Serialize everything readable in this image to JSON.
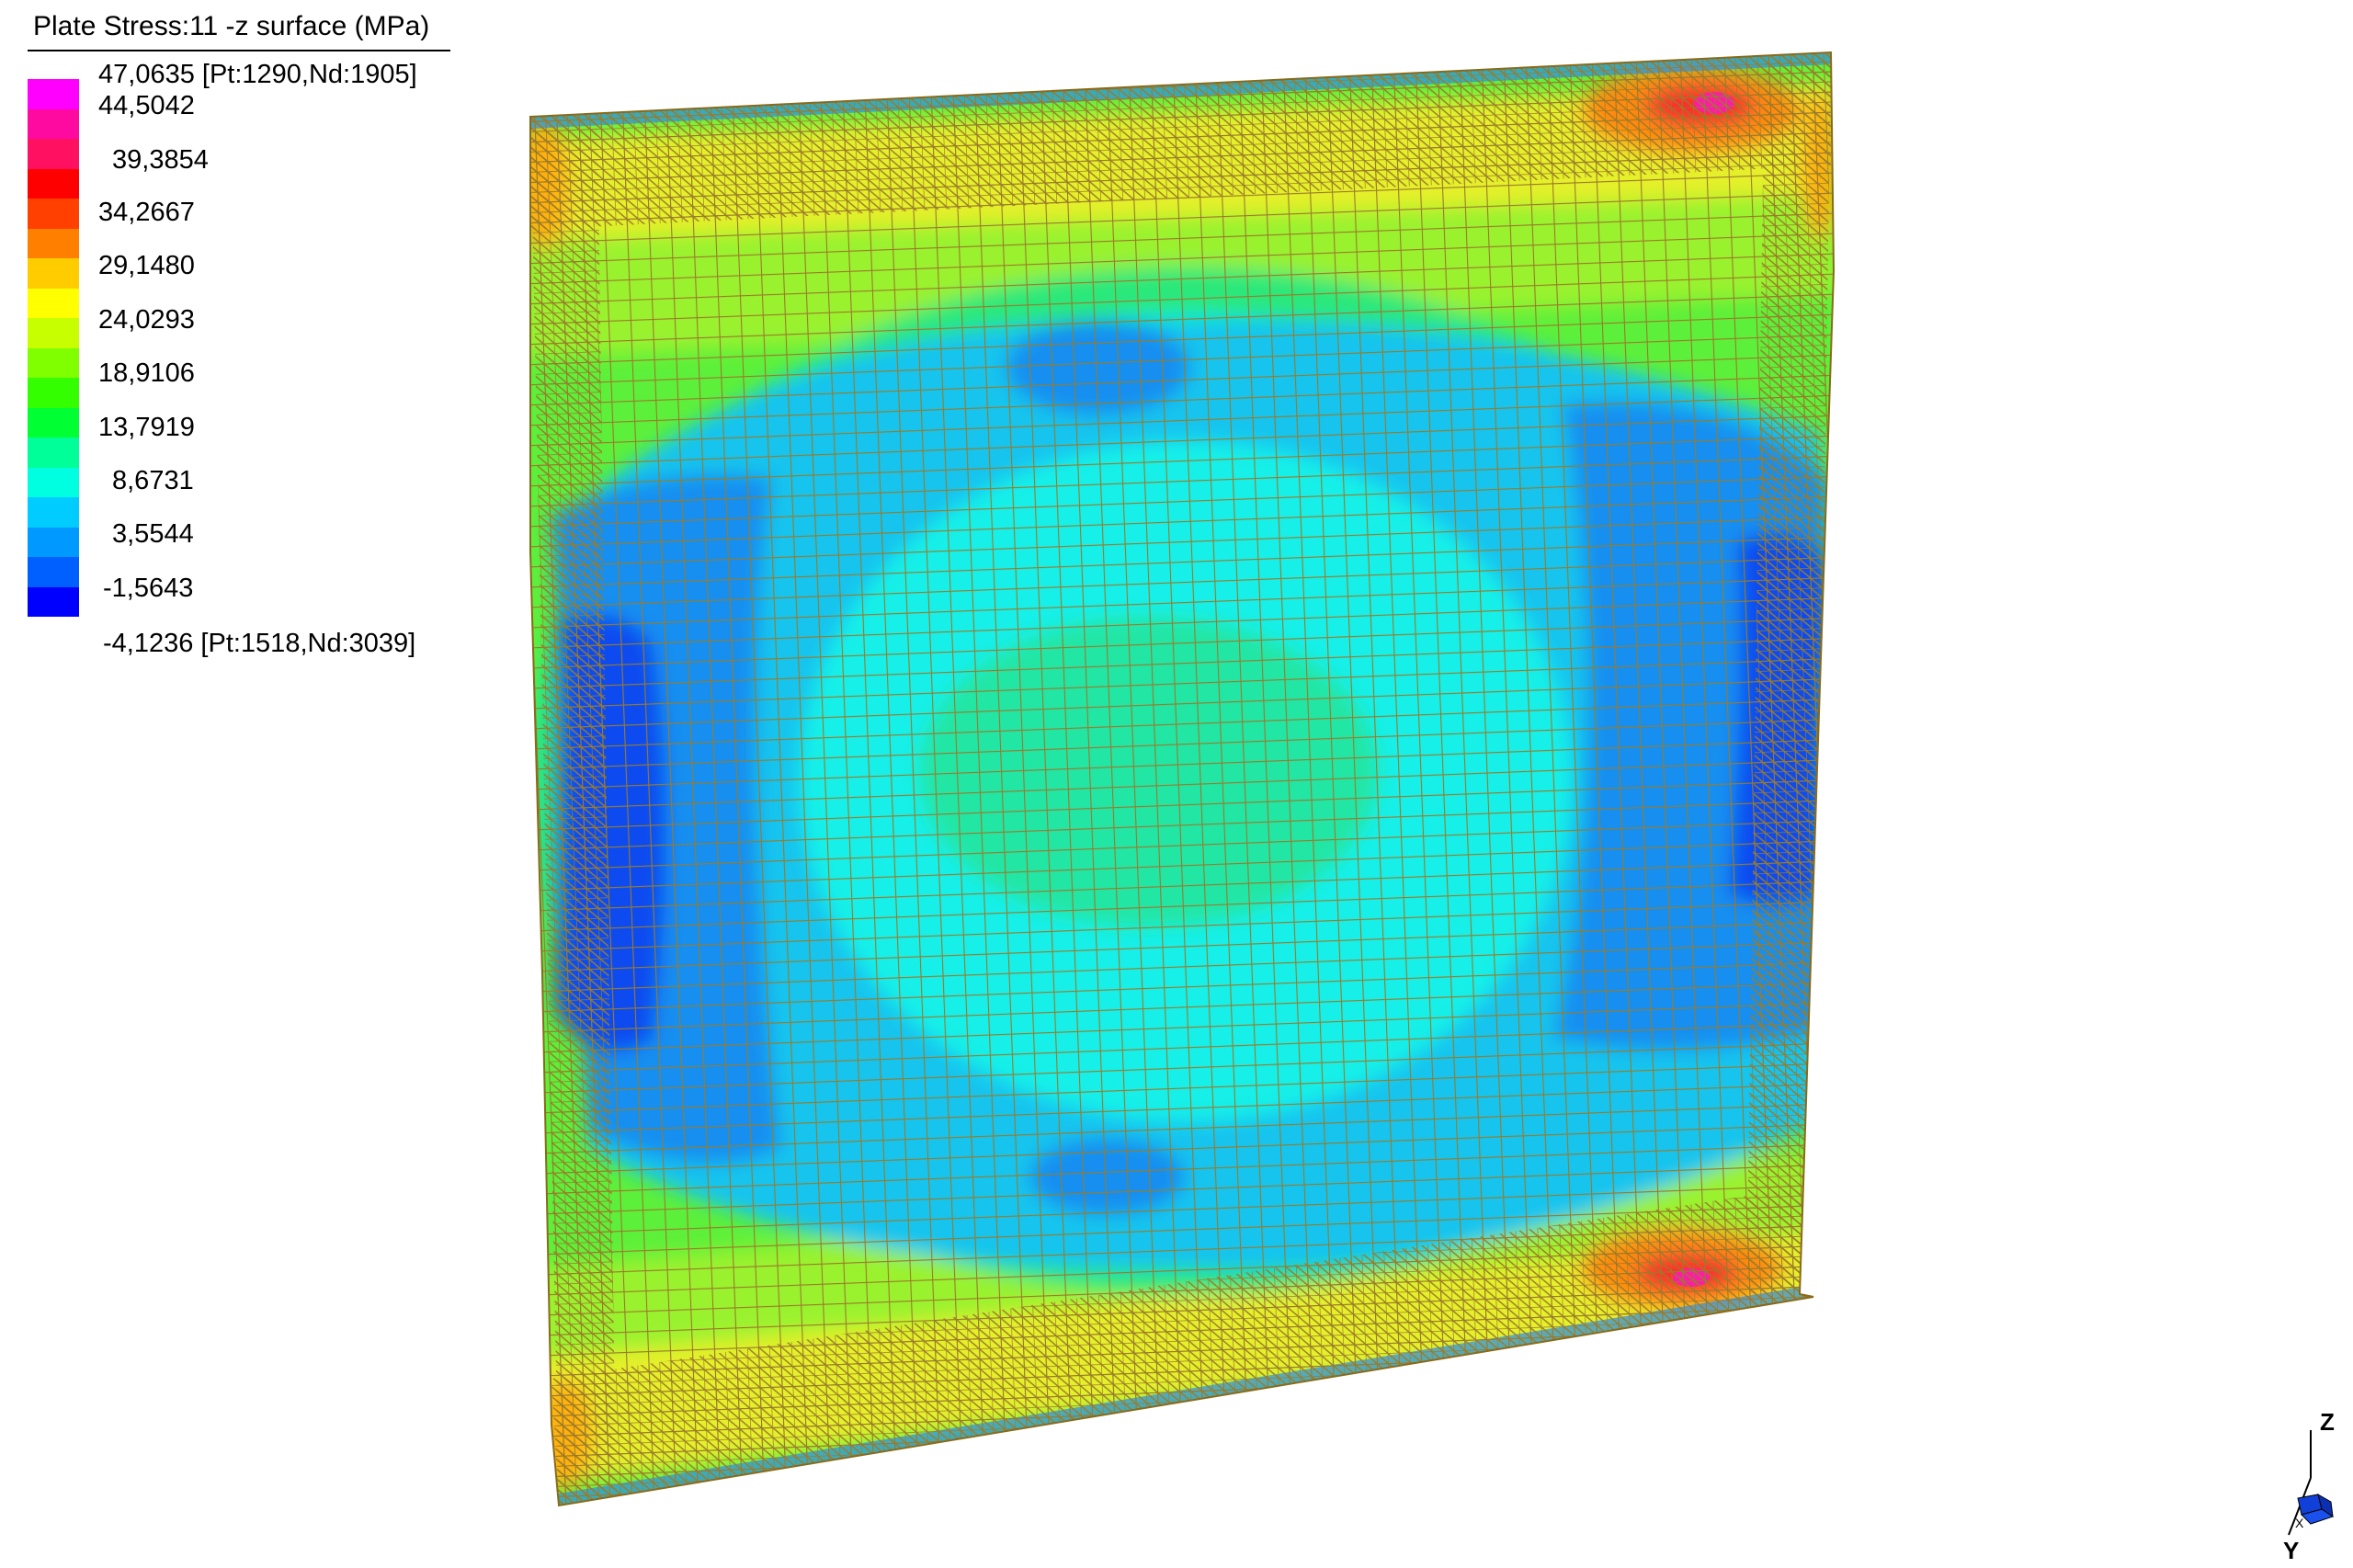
{
  "legend": {
    "title": "Plate Stress:11 -z surface (MPa)",
    "max_label": "47,0635 [Pt:1290,Nd:1905]",
    "min_label": "-4,1236 [Pt:1518,Nd:3039]",
    "tick_labels": [
      "44,5042",
      "39,3854",
      "34,2667",
      "29,1480",
      "24,0293",
      "18,9106",
      "13,7919",
      "8,6731",
      "3,5544",
      "-1,5643"
    ],
    "colors": [
      "#ff00ff",
      "#ff0aa0",
      "#ff1060",
      "#ff0000",
      "#ff4000",
      "#ff8000",
      "#ffcc00",
      "#ffff00",
      "#c8ff00",
      "#80ff00",
      "#33ff00",
      "#00ff33",
      "#00ff99",
      "#00ffe0",
      "#00ccff",
      "#0099ff",
      "#0060ff",
      "#0000ff"
    ]
  },
  "chart_data": {
    "type": "contour",
    "quantity": "Plate Stress:11 -z surface",
    "unit": "MPa",
    "max": 47.0635,
    "max_point": "Pt:1290,Nd:1905",
    "min": -4.1236,
    "min_point": "Pt:1518,Nd:3039",
    "contour_levels": [
      47.0635,
      44.5042,
      39.3854,
      34.2667,
      29.148,
      24.0293,
      18.9106,
      13.7919,
      8.6731,
      3.5544,
      -1.5643,
      -4.1236
    ]
  },
  "axis_triad": {
    "z_label": "Z",
    "y_label": "Y",
    "x_label": "X"
  }
}
